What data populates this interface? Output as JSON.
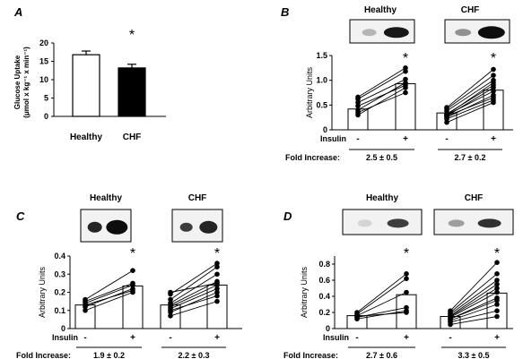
{
  "chart_data": [
    {
      "id": "A",
      "panel_label": "A",
      "type": "bar",
      "ylabel_line1": "Glucose Uptake",
      "ylabel_line2": "(μmol x kg⁻¹ x min⁻¹)",
      "ylim": [
        0,
        20
      ],
      "yticks": [
        "0",
        "5",
        "10",
        "15",
        "20"
      ],
      "categories": [
        "Healthy",
        "CHF"
      ],
      "values": [
        16.8,
        13.2
      ],
      "errors": [
        1.0,
        1.0
      ],
      "fill_colors": [
        "#ffffff",
        "#000000"
      ],
      "significance": "*"
    },
    {
      "id": "B",
      "panel_label": "B",
      "type": "bar",
      "groups": [
        "Healthy",
        "CHF"
      ],
      "ylabel": "Arbitrary Units",
      "ylim": [
        0,
        1.5
      ],
      "yticks": [
        "0",
        "0.5",
        "1.0",
        "1.5"
      ],
      "insulin_label": "Insulin",
      "conditions": [
        "-",
        "+"
      ],
      "means": [
        [
          0.42,
          0.93
        ],
        [
          0.34,
          0.8
        ]
      ],
      "pairs": [
        [
          [
            0.3,
            0.85
          ],
          [
            0.4,
            0.95
          ],
          [
            0.48,
            0.9
          ],
          [
            0.55,
            1.02
          ],
          [
            0.62,
            1.18
          ],
          [
            0.66,
            1.25
          ],
          [
            0.35,
            0.75
          ]
        ],
        [
          [
            0.15,
            0.55
          ],
          [
            0.22,
            0.6
          ],
          [
            0.25,
            0.7
          ],
          [
            0.28,
            0.85
          ],
          [
            0.3,
            0.95
          ],
          [
            0.32,
            0.9
          ],
          [
            0.38,
            1.0
          ],
          [
            0.42,
            1.1
          ],
          [
            0.45,
            1.22
          ],
          [
            0.3,
            0.78
          ],
          [
            0.28,
            0.65
          ]
        ]
      ],
      "significance": [
        "*",
        "*"
      ],
      "fold_label": "Fold Increase:",
      "fold_values": [
        "2.5 ± 0.5",
        "2.7 ± 0.2"
      ]
    },
    {
      "id": "C",
      "panel_label": "C",
      "type": "bar",
      "groups": [
        "Healthy",
        "CHF"
      ],
      "ylabel": "Arbitrary Units",
      "ylim": [
        0,
        0.4
      ],
      "yticks": [
        "0",
        "0.1",
        "0.2",
        "0.3",
        "0.4"
      ],
      "insulin_label": "Insulin",
      "conditions": [
        "-",
        "+"
      ],
      "means": [
        [
          0.13,
          0.235
        ],
        [
          0.13,
          0.24
        ]
      ],
      "pairs": [
        [
          [
            0.1,
            0.2
          ],
          [
            0.12,
            0.22
          ],
          [
            0.14,
            0.24
          ],
          [
            0.15,
            0.25
          ],
          [
            0.16,
            0.32
          ],
          [
            0.13,
            0.21
          ]
        ],
        [
          [
            0.07,
            0.15
          ],
          [
            0.09,
            0.2
          ],
          [
            0.11,
            0.22
          ],
          [
            0.12,
            0.24
          ],
          [
            0.13,
            0.26
          ],
          [
            0.14,
            0.3
          ],
          [
            0.16,
            0.34
          ],
          [
            0.19,
            0.36
          ],
          [
            0.2,
            0.25
          ],
          [
            0.1,
            0.18
          ]
        ]
      ],
      "significance": [
        "*",
        "*"
      ],
      "fold_label": "Fold Increase:",
      "fold_values": [
        "1.9 ± 0.2",
        "2.2 ± 0.3"
      ]
    },
    {
      "id": "D",
      "panel_label": "D",
      "type": "bar",
      "groups": [
        "Healthy",
        "CHF"
      ],
      "ylabel": "Arbitrary Units",
      "ylim": [
        0,
        0.9
      ],
      "yticks": [
        "0",
        "0.2",
        "0.4",
        "0.6",
        "0.8"
      ],
      "insulin_label": "Insulin",
      "conditions": [
        "-",
        "+"
      ],
      "means": [
        [
          0.16,
          0.42
        ],
        [
          0.15,
          0.44
        ]
      ],
      "pairs": [
        [
          [
            0.12,
            0.22
          ],
          [
            0.14,
            0.26
          ],
          [
            0.16,
            0.45
          ],
          [
            0.18,
            0.62
          ],
          [
            0.2,
            0.68
          ],
          [
            0.15,
            0.2
          ]
        ],
        [
          [
            0.05,
            0.15
          ],
          [
            0.08,
            0.22
          ],
          [
            0.1,
            0.3
          ],
          [
            0.12,
            0.38
          ],
          [
            0.14,
            0.45
          ],
          [
            0.16,
            0.55
          ],
          [
            0.18,
            0.6
          ],
          [
            0.2,
            0.68
          ],
          [
            0.22,
            0.82
          ],
          [
            0.15,
            0.5
          ],
          [
            0.12,
            0.35
          ]
        ]
      ],
      "significance": [
        "*",
        "*"
      ],
      "fold_label": "Fold Increase:",
      "fold_values": [
        "2.7 ± 0.6",
        "3.3 ± 0.5"
      ]
    }
  ]
}
